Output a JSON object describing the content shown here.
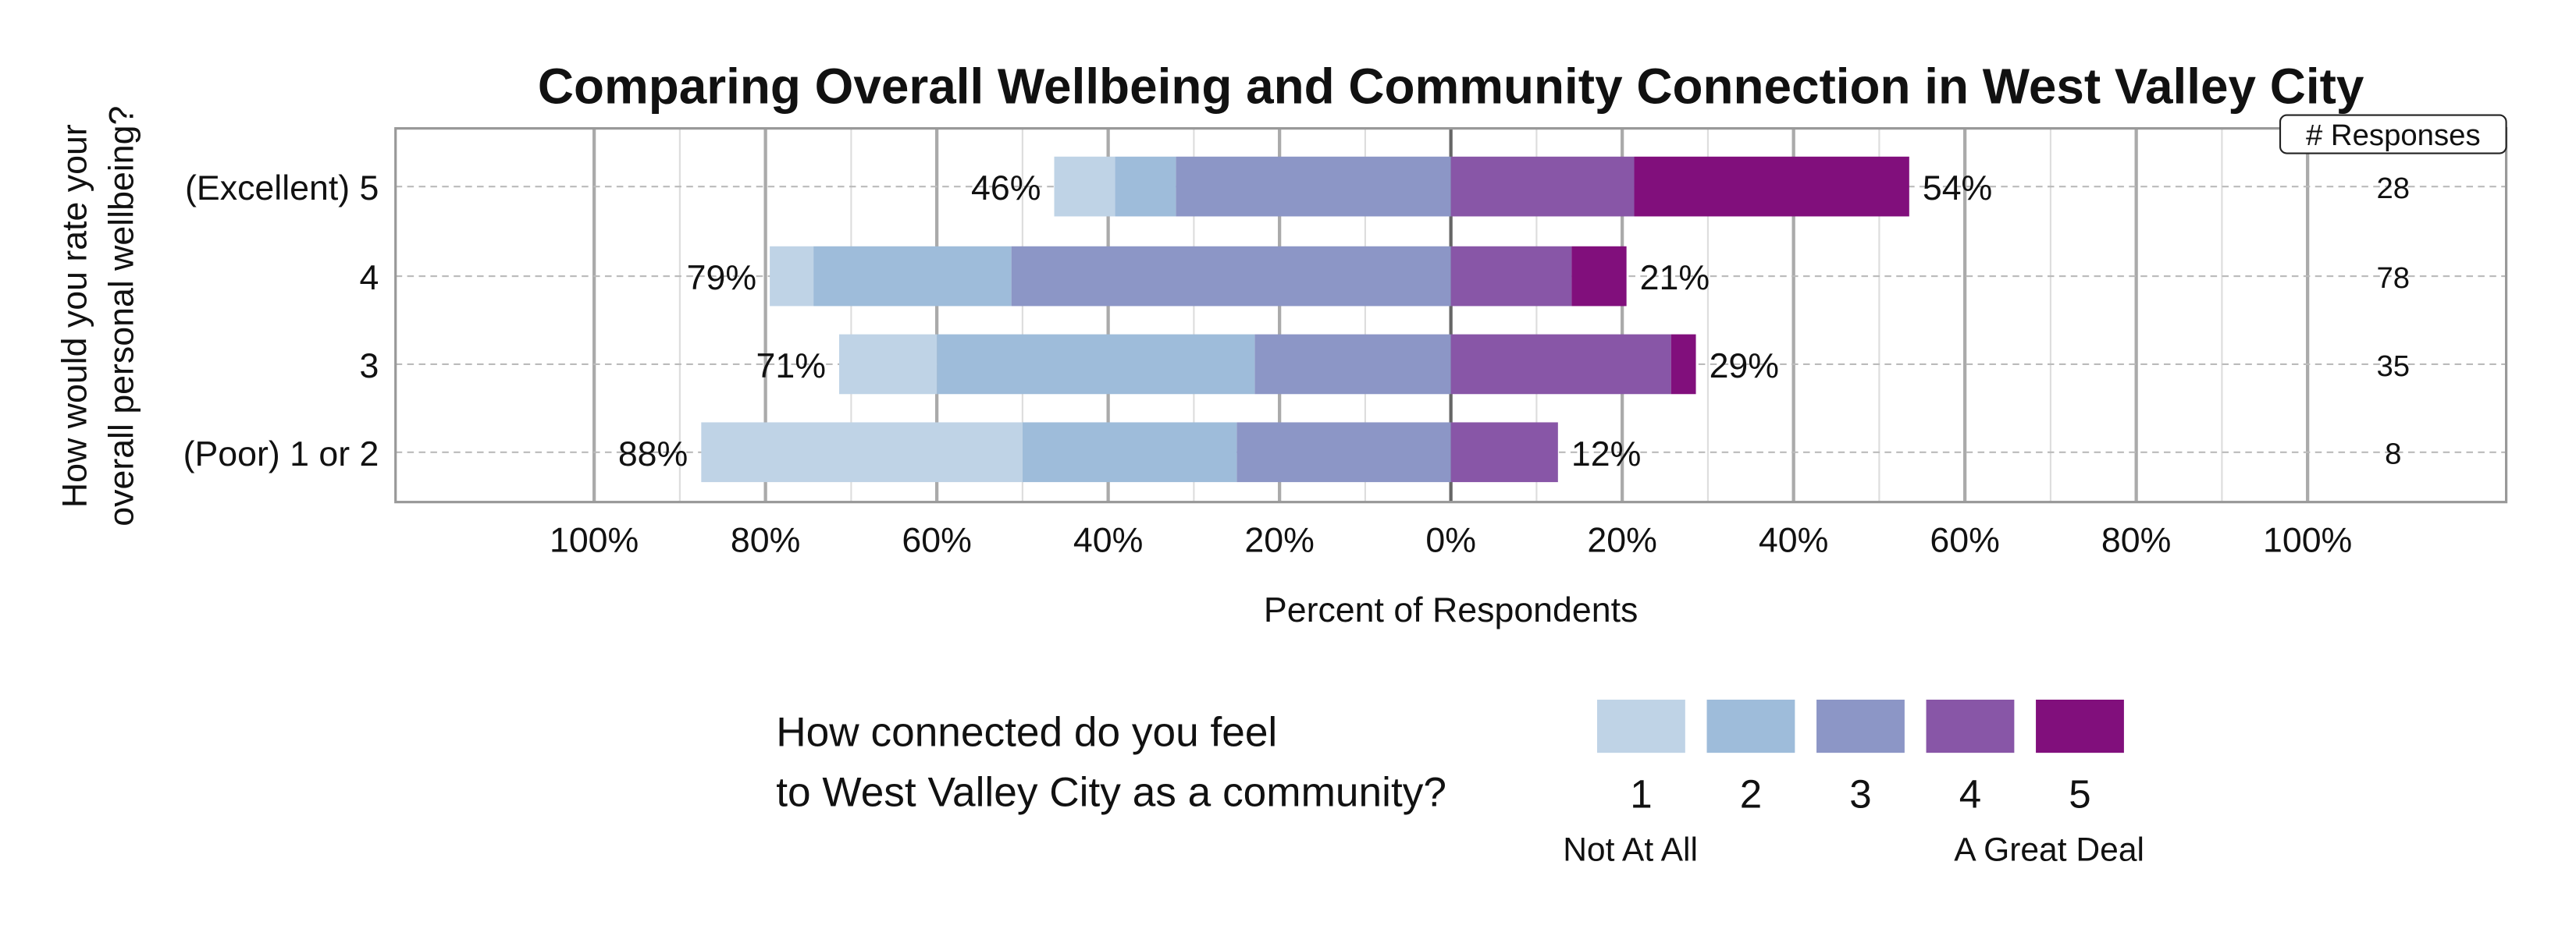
{
  "chart_data": {
    "type": "bar",
    "orientation": "horizontal",
    "stacking": "diverging",
    "title": "Comparing Overall Wellbeing and Community Connection in West Valley City",
    "xlabel": "Percent of Respondents",
    "ylabel_lines": [
      "How would you rate your",
      "overall personal wellbeing?"
    ],
    "xlim": [
      -100,
      100
    ],
    "x_ticks": [
      "100%",
      "80%",
      "60%",
      "40%",
      "20%",
      "0%",
      "20%",
      "40%",
      "60%",
      "80%",
      "100%"
    ],
    "grid": true,
    "categories": [
      "(Excellent) 5",
      "4",
      "3",
      "(Poor) 1 or 2"
    ],
    "responses_header": "# Responses",
    "responses": [
      "28",
      "78",
      "35",
      "8"
    ],
    "series": [
      {
        "name": "1",
        "color": "#bfd3e6",
        "side": "left",
        "values": [
          7.1,
          5.1,
          11.4,
          37.5
        ]
      },
      {
        "name": "2",
        "color": "#9ebcda",
        "side": "left",
        "values": [
          7.1,
          23.1,
          37.1,
          25.0
        ]
      },
      {
        "name": "3",
        "color": "#8c96c6",
        "side": "left",
        "values": [
          32.1,
          51.3,
          22.9,
          25.0
        ]
      },
      {
        "name": "4",
        "color": "#8856a7",
        "side": "right",
        "values": [
          21.4,
          14.1,
          25.7,
          12.5
        ]
      },
      {
        "name": "5",
        "color": "#810f7c",
        "side": "right",
        "values": [
          32.1,
          6.4,
          2.9,
          0
        ]
      }
    ],
    "left_labels": [
      "46%",
      "79%",
      "71%",
      "88%"
    ],
    "right_labels": [
      "54%",
      "21%",
      "29%",
      "12%"
    ],
    "legend": {
      "title_lines": [
        "How connected do you feel",
        "to West Valley City as a community?"
      ],
      "low_label": "Not At All",
      "high_label": "A Great Deal",
      "placement": "bottom"
    }
  }
}
